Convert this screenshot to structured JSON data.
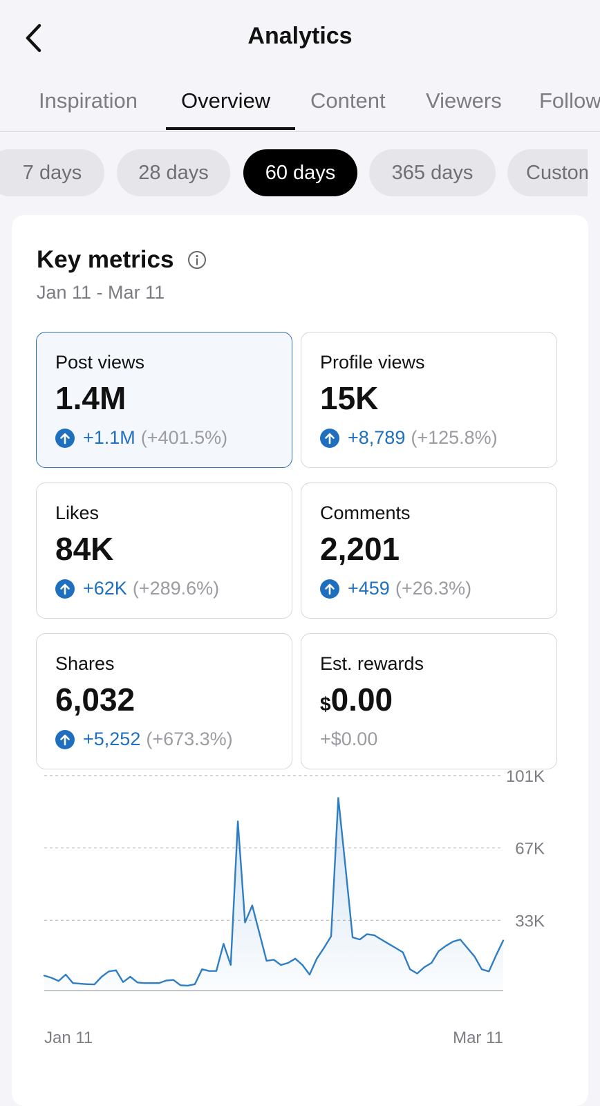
{
  "header": {
    "title": "Analytics",
    "back_icon": "chevron-left-icon"
  },
  "tabs": [
    {
      "label": "Inspiration",
      "active": false
    },
    {
      "label": "Overview",
      "active": true
    },
    {
      "label": "Content",
      "active": false
    },
    {
      "label": "Viewers",
      "active": false
    },
    {
      "label": "Follow",
      "active": false
    }
  ],
  "ranges": [
    {
      "label": "7 days",
      "active": false
    },
    {
      "label": "28 days",
      "active": false
    },
    {
      "label": "60 days",
      "active": true
    },
    {
      "label": "365 days",
      "active": false
    },
    {
      "label": "Custom",
      "active": false
    }
  ],
  "key_metrics": {
    "title": "Key metrics",
    "date_range": "Jan 11 - Mar 11",
    "metrics": [
      {
        "label": "Post views",
        "value": "1.4M",
        "change": "+1.1M",
        "percent": "(+401.5%)",
        "selected": true
      },
      {
        "label": "Profile views",
        "value": "15K",
        "change": "+8,789",
        "percent": "(+125.8%)",
        "selected": false
      },
      {
        "label": "Likes",
        "value": "84K",
        "change": "+62K",
        "percent": "(+289.6%)",
        "selected": false
      },
      {
        "label": "Comments",
        "value": "2,201",
        "change": "+459",
        "percent": "(+26.3%)",
        "selected": false
      },
      {
        "label": "Shares",
        "value": "6,032",
        "change": "+5,252",
        "percent": "(+673.3%)",
        "selected": false
      },
      {
        "label": "Est. rewards",
        "currency": "$",
        "value": "0.00",
        "change": "+$0.00",
        "selected": false
      }
    ]
  },
  "colors": {
    "accent": "#1f6fbf",
    "line": "#2f7ec4",
    "selected_border": "#2a6db0"
  },
  "chart_data": {
    "type": "area",
    "x_labels": [
      "Jan 11",
      "Mar 11"
    ],
    "y_ticks": [
      {
        "value": 33000,
        "label": "33K"
      },
      {
        "value": 67000,
        "label": "67K"
      },
      {
        "value": 101000,
        "label": "101K"
      }
    ],
    "ylim": [
      0,
      101000
    ],
    "grid": true,
    "values": [
      7000,
      6000,
      4500,
      7500,
      3500,
      3200,
      3000,
      2900,
      6500,
      9000,
      9500,
      4000,
      6500,
      3800,
      3500,
      3500,
      3500,
      4700,
      5000,
      2500,
      2300,
      3000,
      10000,
      9200,
      9200,
      22000,
      12000,
      79500,
      32000,
      40000,
      27000,
      14000,
      14500,
      12000,
      13000,
      15000,
      12000,
      7500,
      15000,
      20000,
      25500,
      90500,
      58000,
      25000,
      24000,
      26500,
      26000,
      24000,
      22000,
      20000,
      18000,
      10000,
      8000,
      11000,
      13000,
      18500,
      21000,
      23000,
      24000,
      20000,
      16000,
      10000,
      9000,
      16500,
      23500
    ]
  }
}
